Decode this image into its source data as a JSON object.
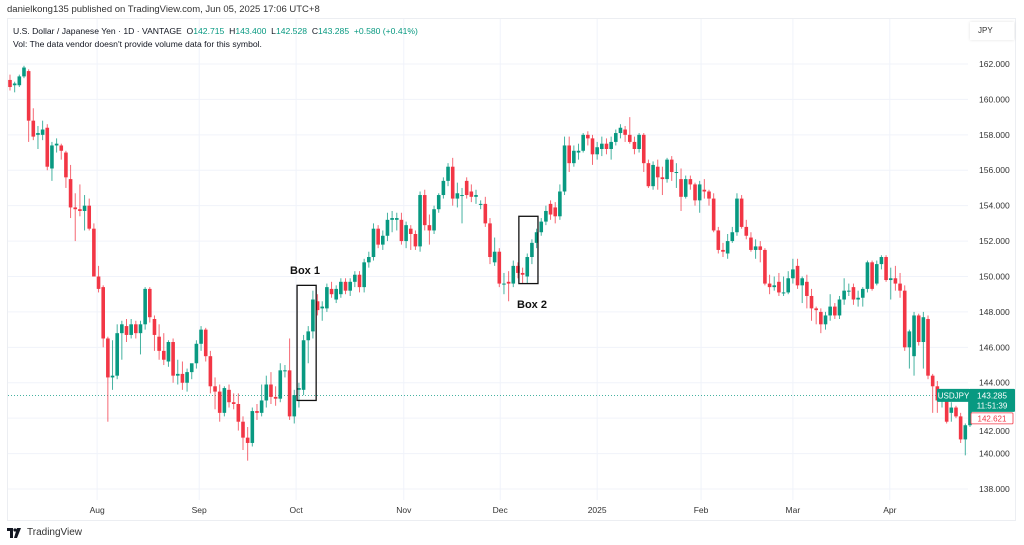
{
  "publisher": "danielkong135 published on TradingView.com, Jun 05, 2025 17:06 UTC+8",
  "legend": {
    "symbol_desc": "U.S. Dollar / Japanese Yen · 1D · VANTAGE",
    "o_label": "O",
    "o": "142.715",
    "h_label": "H",
    "h": "143.400",
    "l_label": "L",
    "l": "142.528",
    "c_label": "C",
    "c": "143.285",
    "change": "+0.580 (+0.41%)",
    "vol": "Vol: The data vendor doesn't provide volume data for this symbol."
  },
  "currency": "JPY",
  "price_labels": {
    "symbol": "USDJPY",
    "last": "143.285",
    "countdown": "11:51:39",
    "secondary": "142.621"
  },
  "brand": "TradingView",
  "colors": {
    "up": "#089981",
    "down": "#F23645",
    "grid": "#f0f3fa"
  },
  "chart_data": {
    "type": "candlestick",
    "symbol": "USDJPY",
    "ylim": [
      137,
      163
    ],
    "yticks": [
      "138.000",
      "140.000",
      "142.000",
      "144.000",
      "146.000",
      "148.000",
      "150.000",
      "152.000",
      "154.000",
      "156.000",
      "158.000",
      "160.000",
      "162.000"
    ],
    "xticks": [
      {
        "label": "Aug",
        "index": 18.7
      },
      {
        "label": "Sep",
        "index": 40.6
      },
      {
        "label": "Oct",
        "index": 61.4
      },
      {
        "label": "Nov",
        "index": 84.5
      },
      {
        "label": "Dec",
        "index": 105.2
      },
      {
        "label": "2025",
        "index": 126
      },
      {
        "label": "Feb",
        "index": 148.3
      },
      {
        "label": "Mar",
        "index": 168
      },
      {
        "label": "Apr",
        "index": 188.8
      }
    ],
    "last_price": 143.285,
    "annotations": [
      {
        "label": "Box 1",
        "index_from": 61.6,
        "index_to": 65.7,
        "price_low": 143.0,
        "price_high": 149.5,
        "label_pos": "above"
      },
      {
        "label": "Box 2",
        "index_from": 109.2,
        "index_to": 113.3,
        "price_low": 149.6,
        "price_high": 153.4,
        "label_pos": "below"
      }
    ],
    "ohlc": [
      [
        161.1,
        161.4,
        160.5,
        160.7
      ],
      [
        160.8,
        161.0,
        160.4,
        160.9
      ],
      [
        160.8,
        161.4,
        160.7,
        161.3
      ],
      [
        161.3,
        161.9,
        161.2,
        161.8
      ],
      [
        161.6,
        161.7,
        157.6,
        158.8
      ],
      [
        158.8,
        159.5,
        157.7,
        157.9
      ],
      [
        158.0,
        158.5,
        157.2,
        158.1
      ],
      [
        158.0,
        158.8,
        157.7,
        158.3
      ],
      [
        158.4,
        158.6,
        156.0,
        156.2
      ],
      [
        156.1,
        157.6,
        155.4,
        157.4
      ],
      [
        157.4,
        157.8,
        157.0,
        157.5
      ],
      [
        157.4,
        157.5,
        156.6,
        157.1
      ],
      [
        157.0,
        157.1,
        155.0,
        155.6
      ],
      [
        155.5,
        156.3,
        153.3,
        153.9
      ],
      [
        153.9,
        154.7,
        152.0,
        153.8
      ],
      [
        153.8,
        155.2,
        153.4,
        153.7
      ],
      [
        153.7,
        154.6,
        152.6,
        154.0
      ],
      [
        154.0,
        154.4,
        152.6,
        152.7
      ],
      [
        152.7,
        153.0,
        150.0,
        150.0
      ],
      [
        150.0,
        150.6,
        149.1,
        149.3
      ],
      [
        149.4,
        149.5,
        146.0,
        146.5
      ],
      [
        146.5,
        146.6,
        141.8,
        144.3
      ],
      [
        144.3,
        146.4,
        143.6,
        144.4
      ],
      [
        144.4,
        147.3,
        144.2,
        146.8
      ],
      [
        146.8,
        147.5,
        145.3,
        147.3
      ],
      [
        147.2,
        147.6,
        146.3,
        146.7
      ],
      [
        146.7,
        147.6,
        146.5,
        147.3
      ],
      [
        147.3,
        147.5,
        146.5,
        146.8
      ],
      [
        146.8,
        147.5,
        145.6,
        147.3
      ],
      [
        147.3,
        149.4,
        147.0,
        149.3
      ],
      [
        149.3,
        149.4,
        147.4,
        147.7
      ],
      [
        147.6,
        147.8,
        145.8,
        146.7
      ],
      [
        146.6,
        147.3,
        145.3,
        145.8
      ],
      [
        145.8,
        146.8,
        145.0,
        145.3
      ],
      [
        145.2,
        146.4,
        144.9,
        146.3
      ],
      [
        146.3,
        146.5,
        144.0,
        144.4
      ],
      [
        144.4,
        145.3,
        143.9,
        144.5
      ],
      [
        144.5,
        145.2,
        143.6,
        144.0
      ],
      [
        144.0,
        144.8,
        143.5,
        144.6
      ],
      [
        144.6,
        145.0,
        144.2,
        145.1
      ],
      [
        145.1,
        146.4,
        144.8,
        146.2
      ],
      [
        146.2,
        147.2,
        145.8,
        147.0
      ],
      [
        147.0,
        147.1,
        145.2,
        145.5
      ],
      [
        145.5,
        145.8,
        143.4,
        143.8
      ],
      [
        143.8,
        144.3,
        142.5,
        143.5
      ],
      [
        143.5,
        143.9,
        141.8,
        142.3
      ],
      [
        142.3,
        143.8,
        142.1,
        143.7
      ],
      [
        143.6,
        143.9,
        142.6,
        142.9
      ],
      [
        142.9,
        143.4,
        142.5,
        142.8
      ],
      [
        142.8,
        143.4,
        141.3,
        141.8
      ],
      [
        141.8,
        142.1,
        140.2,
        140.9
      ],
      [
        140.9,
        141.5,
        139.6,
        140.6
      ],
      [
        140.6,
        142.6,
        140.4,
        142.4
      ],
      [
        142.4,
        142.8,
        141.9,
        142.3
      ],
      [
        142.3,
        143.9,
        142.1,
        143.0
      ],
      [
        143.0,
        144.4,
        142.6,
        143.9
      ],
      [
        143.9,
        144.6,
        142.8,
        143.2
      ],
      [
        143.2,
        143.8,
        142.7,
        143.1
      ],
      [
        143.1,
        145.1,
        142.9,
        144.7
      ],
      [
        144.7,
        145.0,
        144.3,
        144.7
      ],
      [
        144.7,
        146.5,
        141.9,
        142.1
      ],
      [
        142.1,
        143.6,
        141.7,
        143.3
      ],
      [
        143.6,
        144.0,
        142.6,
        143.7
      ],
      [
        143.6,
        146.7,
        143.3,
        146.4
      ],
      [
        146.4,
        147.2,
        145.1,
        146.9
      ],
      [
        146.9,
        149.2,
        146.5,
        148.7
      ],
      [
        148.6,
        149.0,
        147.8,
        148.1
      ],
      [
        148.2,
        148.6,
        147.5,
        148.3
      ],
      [
        148.2,
        149.6,
        148.0,
        149.4
      ],
      [
        149.3,
        149.7,
        148.8,
        149.0
      ],
      [
        148.7,
        149.5,
        148.5,
        149.3
      ],
      [
        149.0,
        149.9,
        148.8,
        149.7
      ],
      [
        149.7,
        149.9,
        149.0,
        149.2
      ],
      [
        149.2,
        149.9,
        148.9,
        149.7
      ],
      [
        149.7,
        150.3,
        149.4,
        150.1
      ],
      [
        150.1,
        150.3,
        149.1,
        149.4
      ],
      [
        149.4,
        151.0,
        149.1,
        150.8
      ],
      [
        150.8,
        151.4,
        150.5,
        151.1
      ],
      [
        151.1,
        153.0,
        150.9,
        152.7
      ],
      [
        152.7,
        152.9,
        151.6,
        151.8
      ],
      [
        151.8,
        152.6,
        151.5,
        152.3
      ],
      [
        152.3,
        153.6,
        152.0,
        153.2
      ],
      [
        153.2,
        153.7,
        152.5,
        153.3
      ],
      [
        153.2,
        153.6,
        152.6,
        153.3
      ],
      [
        153.2,
        153.6,
        151.8,
        152.0
      ],
      [
        152.0,
        153.1,
        151.6,
        152.9
      ],
      [
        152.7,
        152.9,
        151.5,
        152.4
      ],
      [
        152.4,
        152.6,
        151.5,
        151.7
      ],
      [
        151.7,
        154.8,
        151.4,
        154.6
      ],
      [
        154.6,
        154.9,
        152.6,
        152.9
      ],
      [
        152.9,
        153.5,
        151.8,
        152.6
      ],
      [
        152.6,
        154.0,
        152.4,
        153.8
      ],
      [
        153.8,
        154.7,
        153.6,
        154.6
      ],
      [
        154.6,
        155.6,
        154.4,
        155.4
      ],
      [
        155.4,
        156.4,
        155.1,
        156.2
      ],
      [
        156.2,
        156.7,
        154.0,
        154.4
      ],
      [
        154.4,
        155.3,
        153.9,
        154.7
      ],
      [
        154.6,
        155.0,
        153.0,
        154.6
      ],
      [
        155.4,
        155.6,
        154.4,
        154.6
      ],
      [
        154.8,
        155.2,
        154.2,
        154.5
      ],
      [
        154.5,
        154.9,
        154.1,
        154.6
      ],
      [
        154.1,
        154.3,
        153.8,
        154.1
      ],
      [
        154.1,
        154.5,
        152.8,
        153.0
      ],
      [
        153.0,
        153.3,
        150.7,
        151.1
      ],
      [
        150.8,
        152.2,
        150.6,
        151.4
      ],
      [
        151.4,
        151.6,
        149.4,
        149.6
      ],
      [
        149.6,
        150.2,
        149.0,
        149.6
      ],
      [
        149.7,
        150.3,
        148.6,
        149.6
      ],
      [
        149.6,
        150.9,
        149.4,
        150.6
      ],
      [
        150.6,
        150.8,
        149.9,
        150.2
      ],
      [
        150.2,
        150.5,
        149.6,
        150.1
      ],
      [
        150.0,
        151.3,
        149.6,
        151.1
      ],
      [
        151.1,
        152.1,
        150.7,
        151.9
      ],
      [
        151.9,
        152.7,
        151.6,
        152.5
      ],
      [
        152.5,
        153.3,
        152.3,
        153.1
      ],
      [
        153.1,
        154.0,
        152.9,
        153.7
      ],
      [
        154.1,
        154.3,
        153.2,
        153.5
      ],
      [
        153.9,
        154.2,
        153.0,
        153.4
      ],
      [
        153.4,
        155.2,
        153.2,
        154.8
      ],
      [
        154.8,
        157.9,
        154.6,
        157.4
      ],
      [
        157.4,
        157.9,
        155.9,
        156.4
      ],
      [
        156.4,
        157.4,
        156.2,
        157.1
      ],
      [
        157.0,
        157.5,
        156.6,
        157.1
      ],
      [
        157.1,
        158.1,
        157.0,
        158.0
      ],
      [
        158.0,
        158.2,
        157.4,
        157.8
      ],
      [
        157.8,
        158.0,
        156.3,
        156.9
      ],
      [
        156.9,
        157.6,
        156.6,
        157.3
      ],
      [
        157.2,
        157.9,
        156.8,
        157.5
      ],
      [
        157.5,
        157.8,
        156.9,
        157.2
      ],
      [
        157.2,
        157.9,
        156.6,
        157.6
      ],
      [
        157.6,
        158.3,
        157.4,
        158.1
      ],
      [
        158.1,
        158.6,
        157.8,
        158.4
      ],
      [
        158.3,
        158.5,
        157.6,
        158.0
      ],
      [
        158.0,
        159.0,
        157.5,
        157.6
      ],
      [
        157.6,
        157.9,
        156.9,
        157.2
      ],
      [
        157.2,
        158.1,
        157.0,
        158.0
      ],
      [
        158.0,
        158.1,
        155.9,
        156.4
      ],
      [
        156.4,
        156.6,
        155.0,
        155.1
      ],
      [
        155.1,
        156.5,
        154.9,
        156.3
      ],
      [
        156.2,
        156.6,
        154.9,
        155.6
      ],
      [
        155.6,
        156.2,
        154.6,
        155.5
      ],
      [
        155.5,
        156.7,
        155.3,
        156.6
      ],
      [
        156.6,
        156.8,
        155.4,
        155.9
      ],
      [
        155.9,
        156.4,
        155.0,
        155.9
      ],
      [
        155.5,
        156.1,
        153.7,
        154.5
      ],
      [
        154.5,
        155.7,
        154.4,
        155.5
      ],
      [
        155.5,
        155.7,
        154.9,
        155.2
      ],
      [
        155.2,
        155.3,
        154.0,
        154.3
      ],
      [
        154.3,
        155.4,
        153.6,
        155.2
      ],
      [
        154.9,
        155.5,
        154.4,
        154.8
      ],
      [
        154.8,
        154.9,
        154.0,
        154.4
      ],
      [
        154.4,
        154.7,
        152.5,
        152.6
      ],
      [
        152.6,
        152.8,
        151.3,
        151.5
      ],
      [
        151.5,
        151.9,
        151.1,
        151.4
      ],
      [
        151.3,
        152.4,
        151.0,
        152.0
      ],
      [
        152.0,
        152.8,
        151.9,
        152.5
      ],
      [
        152.5,
        154.7,
        152.3,
        154.4
      ],
      [
        154.4,
        154.6,
        152.7,
        152.8
      ],
      [
        152.8,
        153.2,
        152.1,
        152.3
      ],
      [
        152.2,
        152.5,
        151.4,
        151.5
      ],
      [
        151.5,
        152.1,
        151.0,
        151.7
      ],
      [
        151.7,
        152.0,
        150.8,
        151.5
      ],
      [
        151.5,
        151.6,
        149.5,
        149.6
      ],
      [
        149.6,
        150.1,
        149.0,
        149.4
      ],
      [
        149.4,
        150.0,
        149.2,
        149.5
      ],
      [
        149.7,
        150.2,
        148.9,
        149.1
      ],
      [
        149.1,
        150.0,
        148.9,
        149.1
      ],
      [
        149.1,
        150.3,
        149.0,
        149.9
      ],
      [
        149.9,
        151.0,
        149.6,
        150.4
      ],
      [
        150.6,
        151.0,
        149.3,
        149.5
      ],
      [
        149.5,
        150.0,
        148.5,
        149.9
      ],
      [
        149.7,
        150.1,
        148.2,
        148.9
      ],
      [
        148.9,
        149.3,
        147.5,
        148.2
      ],
      [
        148.2,
        148.3,
        147.3,
        148.1
      ],
      [
        148.0,
        148.2,
        146.8,
        147.3
      ],
      [
        147.3,
        148.0,
        147.0,
        147.8
      ],
      [
        147.8,
        149.0,
        147.5,
        148.3
      ],
      [
        148.3,
        148.5,
        147.6,
        147.8
      ],
      [
        147.8,
        148.9,
        147.6,
        148.7
      ],
      [
        148.7,
        149.9,
        148.4,
        149.2
      ],
      [
        149.2,
        149.6,
        148.9,
        149.2
      ],
      [
        149.4,
        149.6,
        148.4,
        148.7
      ],
      [
        148.7,
        149.2,
        148.3,
        148.8
      ],
      [
        148.8,
        149.4,
        148.3,
        149.3
      ],
      [
        149.3,
        150.9,
        149.1,
        150.8
      ],
      [
        150.8,
        150.9,
        149.2,
        149.3
      ],
      [
        149.6,
        150.9,
        149.5,
        150.7
      ],
      [
        150.7,
        151.2,
        150.4,
        151.1
      ],
      [
        151.1,
        151.2,
        149.7,
        149.8
      ],
      [
        149.8,
        150.5,
        148.7,
        149.9
      ],
      [
        149.9,
        150.6,
        149.2,
        149.6
      ],
      [
        149.6,
        150.2,
        148.8,
        149.2
      ],
      [
        149.2,
        149.5,
        145.8,
        146.0
      ],
      [
        146.0,
        147.0,
        144.8,
        146.9
      ],
      [
        145.5,
        148.0,
        144.4,
        147.8
      ],
      [
        147.8,
        147.9,
        146.1,
        146.3
      ],
      [
        146.3,
        148.0,
        144.8,
        147.7
      ],
      [
        147.6,
        147.8,
        144.2,
        144.4
      ],
      [
        144.4,
        144.5,
        142.3,
        143.8
      ],
      [
        143.8,
        144.1,
        142.3,
        143.0
      ],
      [
        143.0,
        143.6,
        142.6,
        143.1
      ],
      [
        143.0,
        143.4,
        141.7,
        141.8
      ],
      [
        142.3,
        142.9,
        141.8,
        142.6
      ],
      [
        142.6,
        142.7,
        142.0,
        142.1
      ],
      [
        142.1,
        142.3,
        140.6,
        140.8
      ],
      [
        140.8,
        141.7,
        139.9,
        141.6
      ],
      [
        141.6,
        143.5,
        141.5,
        143.2
      ],
      [
        142.715,
        143.4,
        142.528,
        143.285
      ]
    ]
  }
}
